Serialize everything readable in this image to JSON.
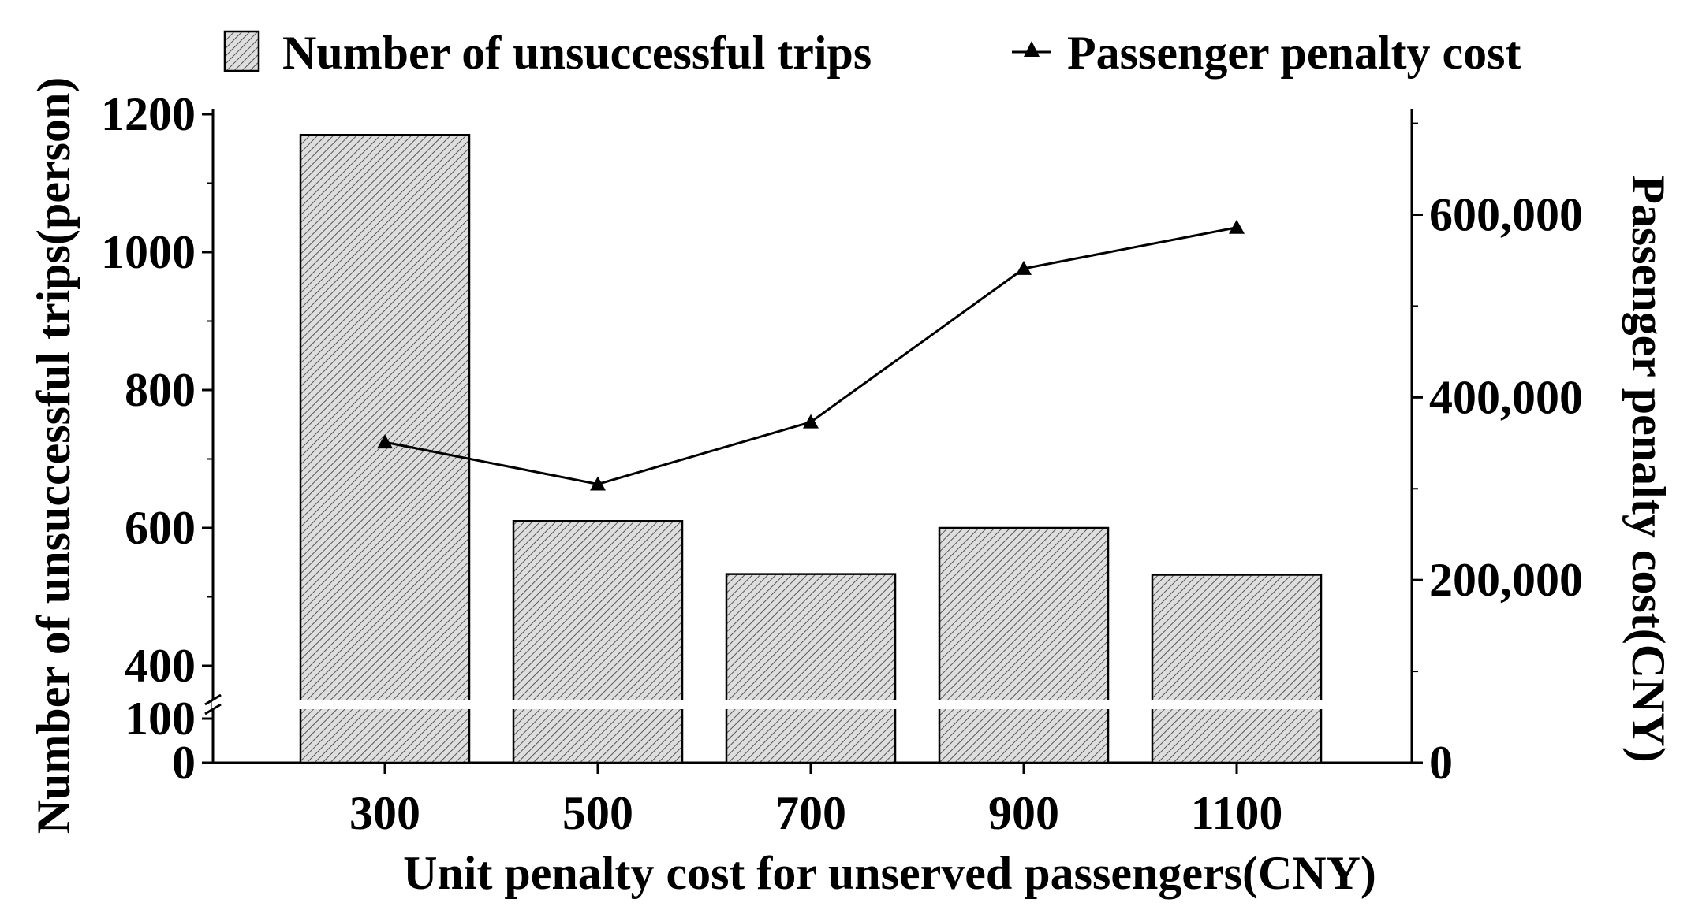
{
  "chart_data": {
    "type": "bar",
    "title": "",
    "xlabel": "Unit penalty cost for unserved passengers(CNY)",
    "categories": [
      "300",
      "500",
      "700",
      "900",
      "1100"
    ],
    "series": [
      {
        "name": "Number of unsuccessful trips",
        "type": "bar",
        "axis": "left",
        "values": [
          1170,
          610,
          533,
          600,
          532
        ]
      },
      {
        "name": "Passenger penalty cost",
        "type": "line",
        "axis": "right",
        "marker": "triangle",
        "values": [
          351000,
          305000,
          373000,
          541000,
          586000
        ]
      }
    ],
    "y_left": {
      "label": "Number of unsuccessful trips(person)",
      "broken": true,
      "lower_segment": [
        0,
        100
      ],
      "upper_segment": [
        400,
        1200
      ],
      "lower_ticks": [
        "0",
        "100"
      ],
      "upper_ticks": [
        "400",
        "600",
        "800",
        "1000",
        "1200"
      ]
    },
    "y_right": {
      "label": "Passenger penalty cost(CNY)",
      "ylim": [
        0,
        710000
      ],
      "ticks": [
        "0",
        "200,000",
        "400,000",
        "600,000"
      ]
    },
    "legend": {
      "placement": "top",
      "bar_label": "Number of unsuccessful trips",
      "line_label": "Passenger penalty cost"
    },
    "grid": false,
    "colors": {
      "bar_fill": "#d8d8d8",
      "bar_hatch": "#555555",
      "line": "#000000"
    }
  }
}
